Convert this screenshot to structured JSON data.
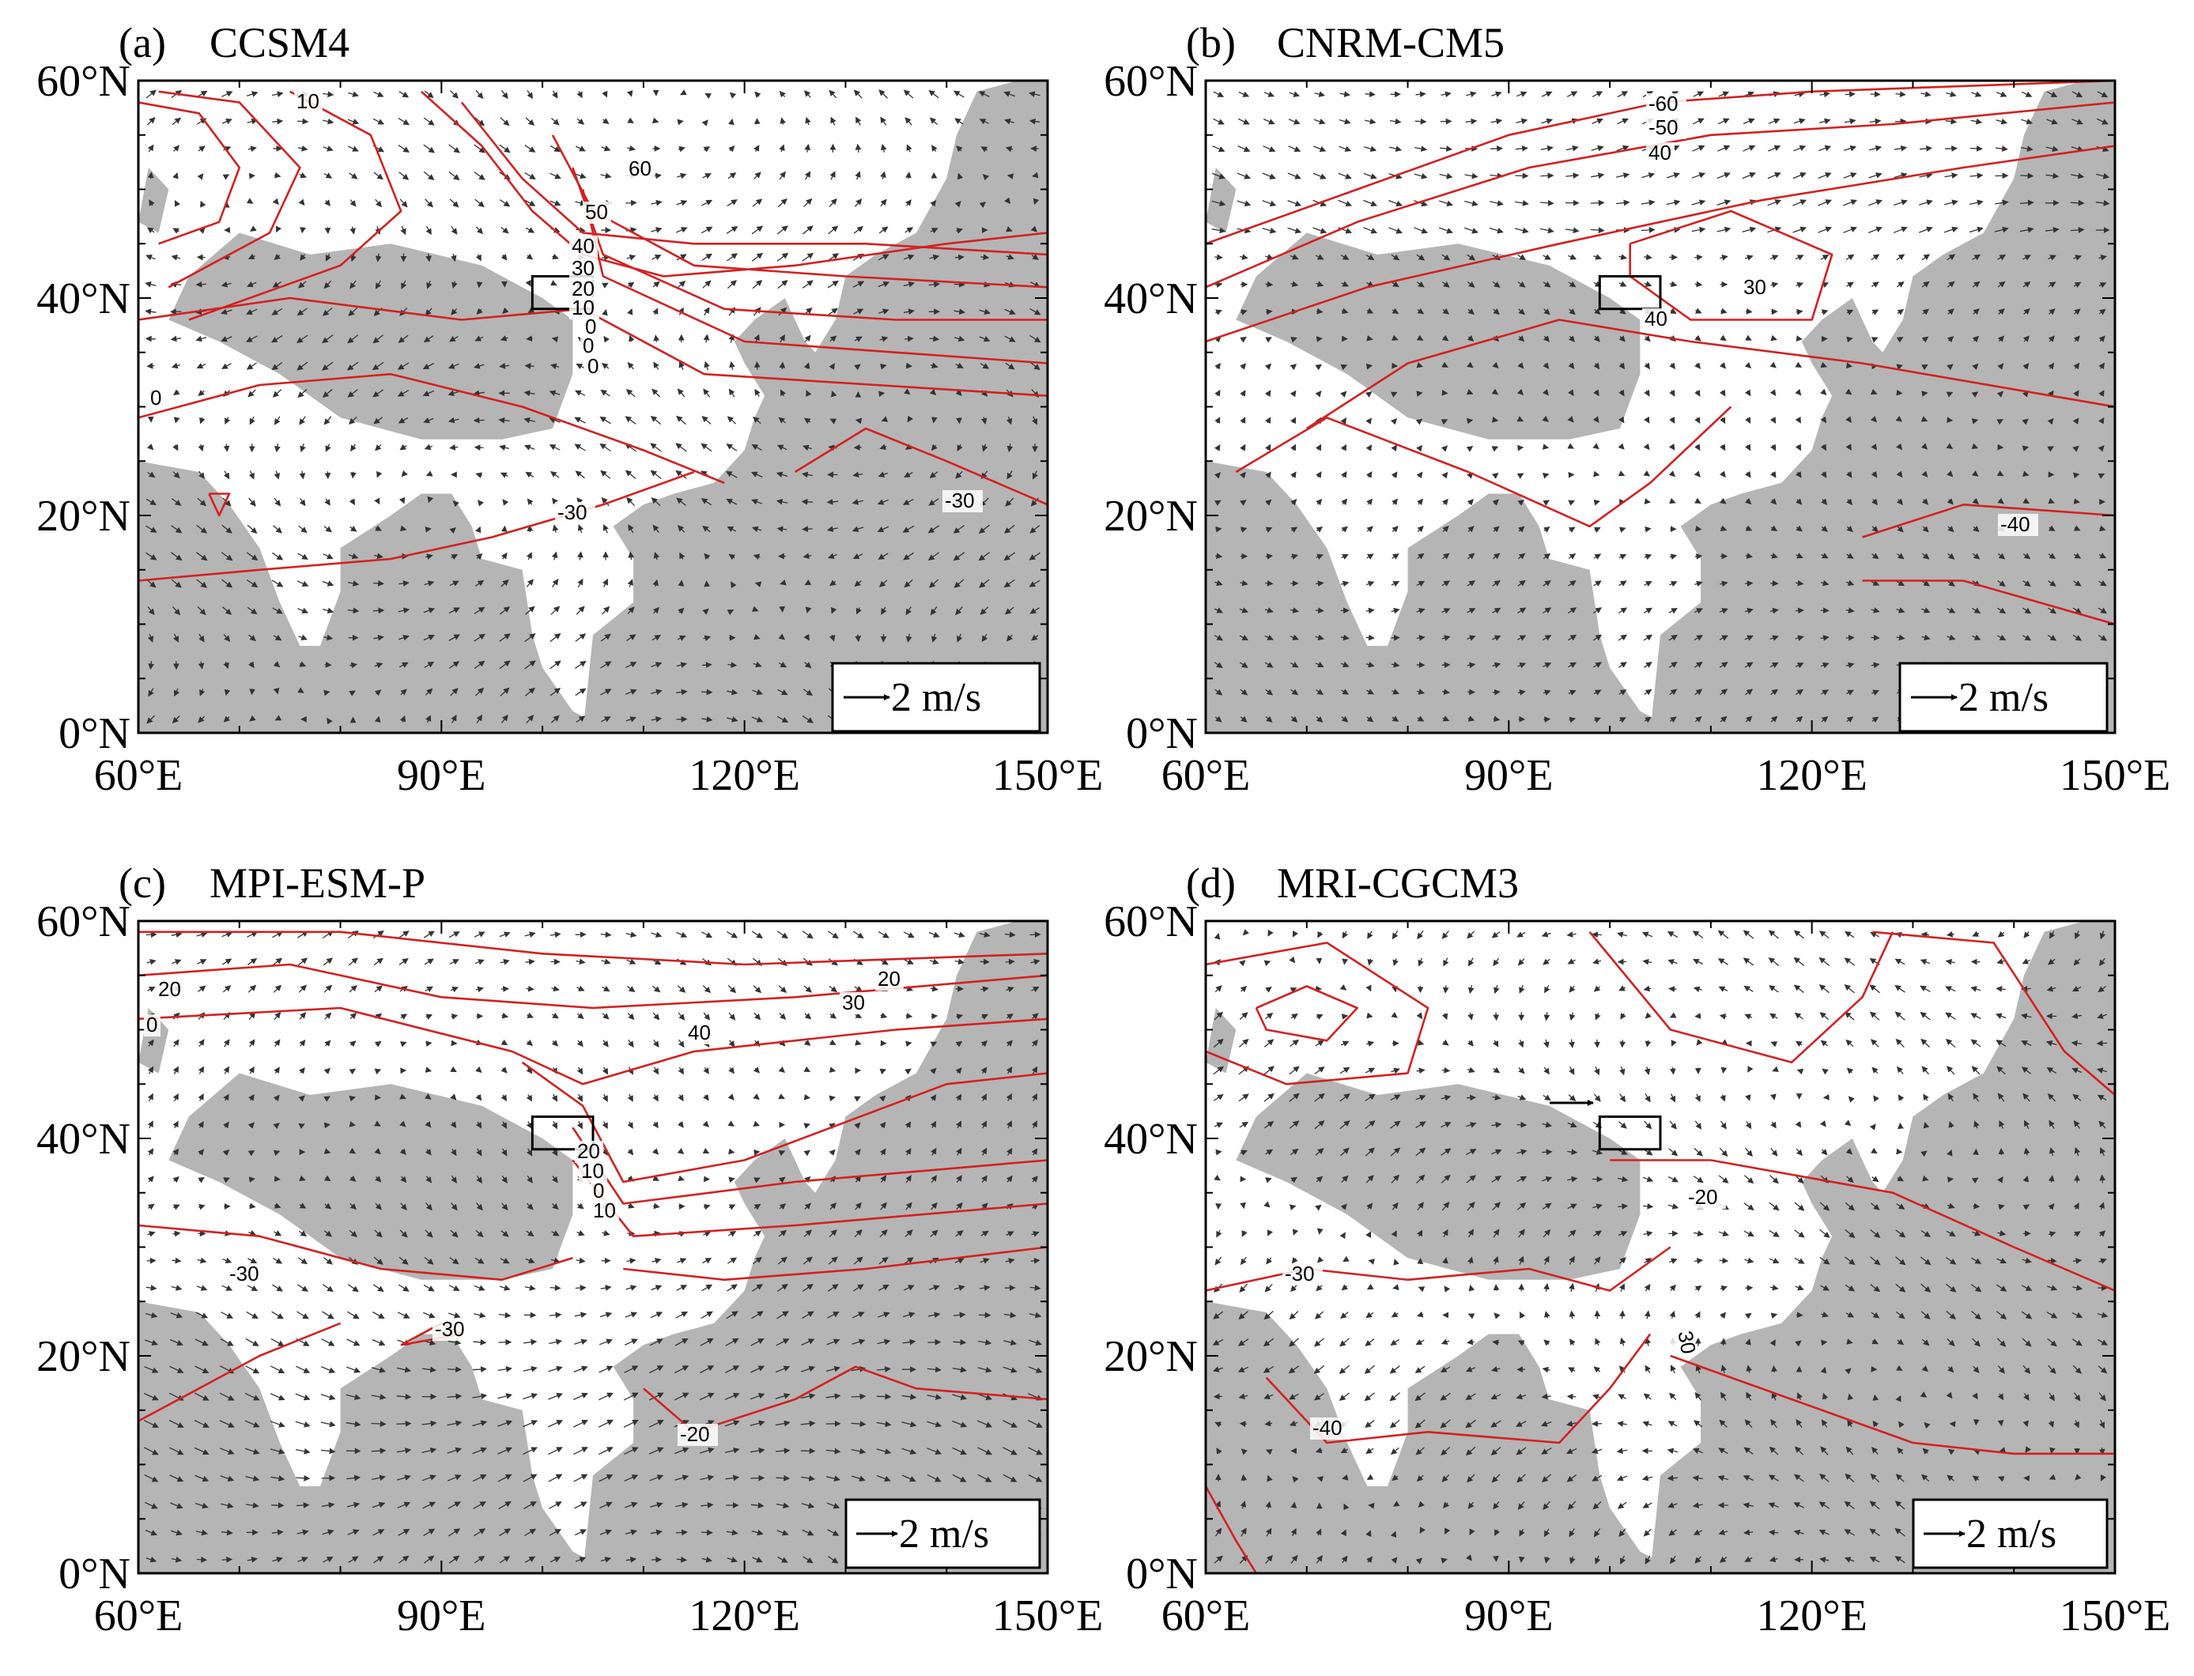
{
  "figure": {
    "type": "multi-panel map",
    "grid": "2x2",
    "x_axis": {
      "ticks": [
        "60°E",
        "90°E",
        "120°E",
        "150°E"
      ],
      "range_lon": [
        60,
        150
      ]
    },
    "y_axis": {
      "ticks": [
        "0°N",
        "20°N",
        "40°N",
        "60°N"
      ],
      "range_lat": [
        0,
        60
      ]
    },
    "colors": {
      "contour": "#d42020",
      "land_shade": "#b5b5b5",
      "vector": "#333333",
      "frame": "#000000"
    },
    "reference_vector_label": "2 m/s",
    "study_box": {
      "lon": [
        99,
        105
      ],
      "lat": [
        39,
        42
      ]
    }
  },
  "panels": [
    {
      "id": "a",
      "label": "(a)",
      "title": "CCSM4",
      "contour_labels": [
        "10",
        "60",
        "50",
        "40",
        "30",
        "20",
        "10",
        "0",
        "0",
        "0",
        "0",
        "-30",
        "-30"
      ]
    },
    {
      "id": "b",
      "label": "(b)",
      "title": "CNRM-CM5",
      "contour_labels": [
        "-60",
        "-50",
        "40",
        "30",
        "40",
        "-40"
      ]
    },
    {
      "id": "c",
      "label": "(c)",
      "title": "MPI-ESM-P",
      "contour_labels": [
        "20",
        "0",
        "20",
        "30",
        "40",
        "20",
        "10",
        "0",
        "10",
        "-30",
        "-30",
        "-20"
      ]
    },
    {
      "id": "d",
      "label": "(d)",
      "title": "MRI-CGCM3",
      "contour_labels": [
        "-20",
        "-30",
        "30",
        "-40"
      ]
    }
  ]
}
